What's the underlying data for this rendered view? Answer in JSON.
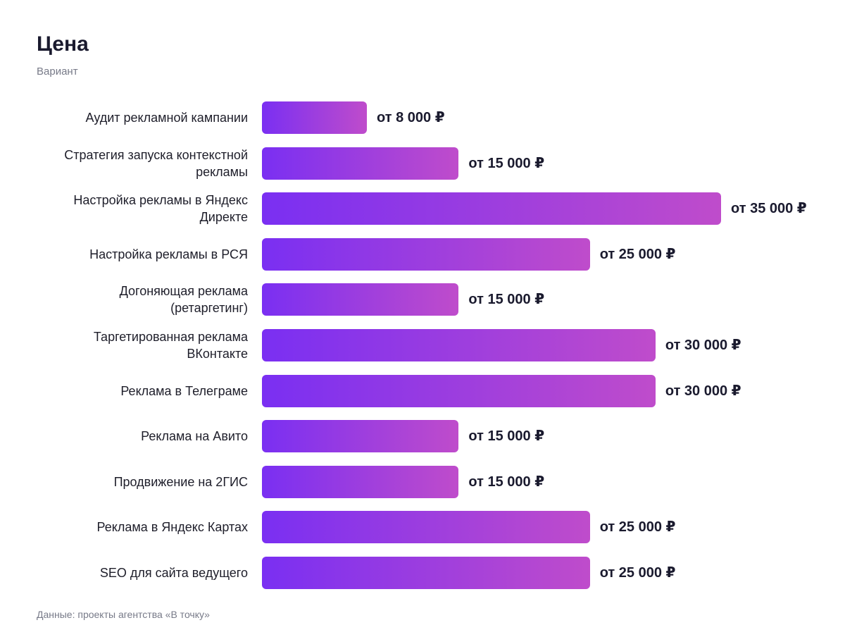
{
  "chart_data": {
    "type": "bar",
    "orientation": "horizontal",
    "title": "Цена",
    "subtitle": "Вариант",
    "categories": [
      "Аудит рекламной кампании",
      "Стратегия запуска контекстной рекламы",
      "Настройка рекламы в Яндекс Директе",
      "Настройка рекламы в РСЯ",
      "Догоняющая реклама (ретаргетинг)",
      "Таргетированная реклама ВКонтакте",
      "Реклама в Телеграме",
      "Реклама на Авито",
      "Продвижение на 2ГИС",
      "Реклама в Яндекс Картах",
      "SEO для сайта ведущего"
    ],
    "values": [
      8000,
      15000,
      35000,
      25000,
      15000,
      30000,
      30000,
      15000,
      15000,
      25000,
      25000
    ],
    "value_labels": [
      "от 8 000 ₽",
      "от 15 000 ₽",
      "от 35 000 ₽",
      "от 25 000 ₽",
      "от 15 000 ₽",
      "от 30 000 ₽",
      "от 30 000 ₽",
      "от 15 000 ₽",
      "от 15 000 ₽",
      "от 25 000 ₽",
      "от 25 000 ₽"
    ],
    "xlim": [
      0,
      35000
    ],
    "colors": [
      "#7a2ff2",
      "#bf4ccb"
    ],
    "source": "Данные: проекты агентства «В точку»"
  }
}
